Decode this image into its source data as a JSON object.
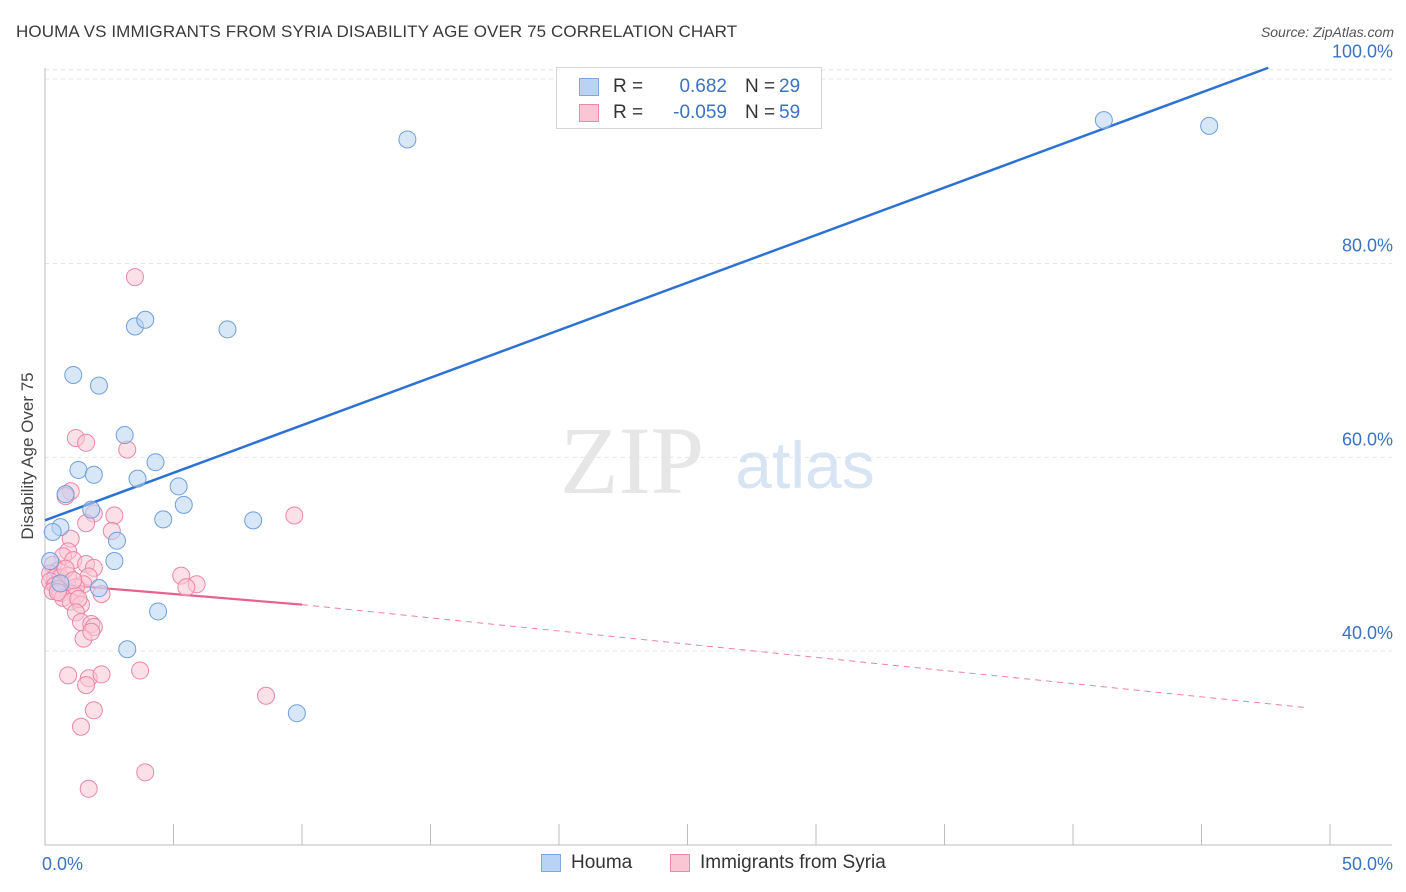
{
  "header": {
    "title": "HOUMA VS IMMIGRANTS FROM SYRIA DISABILITY AGE OVER 75 CORRELATION CHART",
    "source": "Source: ZipAtlas.com"
  },
  "watermark": {
    "zip": "ZIP",
    "atlas": "atlas"
  },
  "legend_top": {
    "rows": [
      {
        "r_label": "R =",
        "r_value": "0.682",
        "n_label": "N =",
        "n_value": "29"
      },
      {
        "r_label": "R =",
        "r_value": "-0.059",
        "n_label": "N =",
        "n_value": "59"
      }
    ]
  },
  "legend_bottom": {
    "series1": "Houma",
    "series2": "Immigrants from Syria"
  },
  "colors": {
    "blue_fill": "#b8d3f3",
    "blue_stroke": "#6f9fdc",
    "blue_line": "#2d72d2",
    "pink_fill": "#f9c6d6",
    "pink_stroke": "#ec86a8",
    "pink_line": "#e8628f",
    "axis_label": "#3a72c4",
    "grid": "#e4e4e4"
  },
  "chart_data": {
    "type": "scatter",
    "title": "HOUMA VS IMMIGRANTS FROM SYRIA DISABILITY AGE OVER 75 CORRELATION CHART",
    "xlabel": "",
    "ylabel": "Disability Age Over 75",
    "xlim": [
      0,
      50
    ],
    "ylim": [
      20,
      101
    ],
    "x_tick_labels": [
      "0.0%",
      "50.0%"
    ],
    "y_ticks": [
      40,
      60,
      80,
      100
    ],
    "y_tick_labels": [
      "40.0%",
      "60.0%",
      "80.0%",
      "100.0%"
    ],
    "x_minor_ticks": [
      0,
      5,
      10,
      15,
      20,
      25,
      30,
      35,
      40,
      45,
      50
    ],
    "legend_position": "top-center",
    "series": [
      {
        "name": "Houma",
        "r": 0.682,
        "n": 29,
        "trend": {
          "x_start": 0,
          "y_start": 53.5,
          "x_end": 47.6,
          "y_end": 100.2,
          "dashed_extension": false
        },
        "points": [
          [
            14.1,
            92.8
          ],
          [
            41.2,
            94.8
          ],
          [
            45.3,
            94.2
          ],
          [
            3.5,
            73.5
          ],
          [
            3.9,
            74.2
          ],
          [
            7.1,
            73.2
          ],
          [
            1.1,
            68.5
          ],
          [
            2.1,
            67.4
          ],
          [
            3.1,
            62.3
          ],
          [
            1.3,
            58.7
          ],
          [
            1.9,
            58.2
          ],
          [
            3.6,
            57.8
          ],
          [
            4.3,
            59.5
          ],
          [
            5.2,
            57.0
          ],
          [
            0.8,
            56.2
          ],
          [
            1.8,
            54.6
          ],
          [
            5.4,
            55.1
          ],
          [
            4.6,
            53.6
          ],
          [
            8.1,
            53.5
          ],
          [
            0.6,
            52.8
          ],
          [
            0.3,
            52.3
          ],
          [
            2.8,
            51.4
          ],
          [
            2.7,
            49.3
          ],
          [
            0.2,
            49.3
          ],
          [
            0.6,
            47.0
          ],
          [
            2.1,
            46.5
          ],
          [
            4.4,
            44.1
          ],
          [
            3.2,
            40.2
          ],
          [
            9.8,
            33.6
          ]
        ]
      },
      {
        "name": "Immigrants from Syria",
        "r": -0.059,
        "n": 59,
        "trend": {
          "x_start": 0,
          "y_start": 47.0,
          "x_end": 10.0,
          "y_end": 44.8,
          "dashed_to_x": 49.0,
          "dashed_to_y": 34.2
        },
        "points": [
          [
            3.5,
            78.6
          ],
          [
            1.2,
            62.0
          ],
          [
            1.6,
            61.5
          ],
          [
            3.2,
            60.8
          ],
          [
            1.0,
            56.5
          ],
          [
            0.8,
            56.0
          ],
          [
            1.9,
            54.2
          ],
          [
            2.7,
            54.0
          ],
          [
            9.7,
            54.0
          ],
          [
            1.6,
            53.2
          ],
          [
            2.6,
            52.4
          ],
          [
            1.0,
            51.6
          ],
          [
            0.9,
            50.3
          ],
          [
            0.7,
            49.8
          ],
          [
            1.1,
            49.4
          ],
          [
            1.6,
            49.0
          ],
          [
            1.9,
            48.6
          ],
          [
            0.3,
            48.9
          ],
          [
            0.5,
            48.3
          ],
          [
            0.2,
            48.0
          ],
          [
            0.4,
            47.6
          ],
          [
            0.6,
            47.6
          ],
          [
            0.9,
            47.8
          ],
          [
            1.7,
            47.7
          ],
          [
            0.2,
            47.2
          ],
          [
            0.4,
            46.8
          ],
          [
            1.5,
            46.9
          ],
          [
            5.3,
            47.8
          ],
          [
            0.5,
            46.4
          ],
          [
            1.2,
            46.6
          ],
          [
            5.9,
            46.9
          ],
          [
            0.3,
            46.2
          ],
          [
            0.6,
            46.0
          ],
          [
            1.2,
            45.7
          ],
          [
            2.2,
            45.9
          ],
          [
            5.5,
            46.6
          ],
          [
            0.7,
            45.5
          ],
          [
            1.0,
            45.1
          ],
          [
            1.4,
            44.8
          ],
          [
            1.3,
            45.4
          ],
          [
            1.2,
            44.0
          ],
          [
            1.4,
            43.0
          ],
          [
            1.8,
            42.8
          ],
          [
            1.9,
            42.5
          ],
          [
            1.5,
            41.3
          ],
          [
            1.8,
            42.0
          ],
          [
            3.7,
            38.0
          ],
          [
            0.9,
            37.5
          ],
          [
            1.7,
            37.2
          ],
          [
            2.2,
            37.6
          ],
          [
            1.6,
            36.5
          ],
          [
            8.6,
            35.4
          ],
          [
            1.9,
            33.9
          ],
          [
            1.4,
            32.2
          ],
          [
            3.9,
            27.5
          ],
          [
            1.7,
            25.8
          ],
          [
            0.5,
            46.1
          ],
          [
            0.8,
            48.5
          ],
          [
            1.1,
            47.3
          ]
        ]
      }
    ]
  }
}
